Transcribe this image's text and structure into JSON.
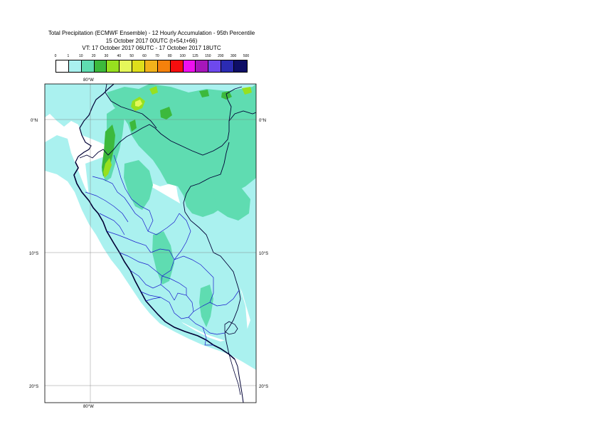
{
  "title": {
    "line1": "Total Precipitation (ECMWF Ensemble) - 12 Hourly Accumulation - 95th Percentile",
    "line2": "15 October 2017 00UTC (t+54,t+66)",
    "line3": "VT: 17 October 2017 06UTC - 17 October 2017 18UTC"
  },
  "legend": {
    "labels": [
      "0",
      "1",
      "10",
      "20",
      "30",
      "40",
      "50",
      "60",
      "70",
      "80",
      "100",
      "125",
      "150",
      "200",
      "300",
      "500"
    ],
    "colors": [
      "#ffffff",
      "#aaf1ef",
      "#5fdcb1",
      "#3cb93c",
      "#97e01f",
      "#e5f75a",
      "#dede1b",
      "#f2b21b",
      "#f5810c",
      "#f50e0e",
      "#ee10ee",
      "#a616ba",
      "#6e49ee",
      "#2b2bb2",
      "#0e0e66"
    ]
  },
  "map": {
    "lat_labels": [
      "0°N",
      "10°S",
      "20°S"
    ],
    "lon_label_top": "80°W",
    "lon_label_bottom": "80°W"
  }
}
